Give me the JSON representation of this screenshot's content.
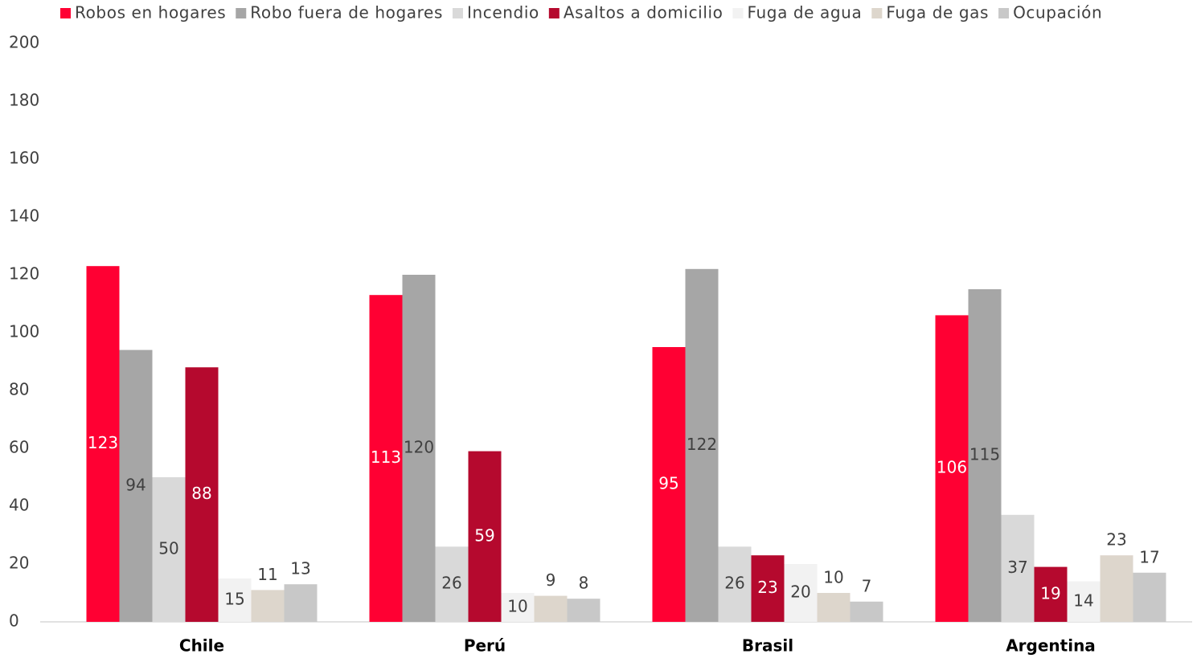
{
  "chart_data": {
    "type": "bar",
    "categories": [
      "Chile",
      "Perú",
      "Brasil",
      "Argentina"
    ],
    "series": [
      {
        "name": "Robos en hogares",
        "color": "#ff0033",
        "values": [
          123,
          113,
          95,
          106
        ],
        "label_position": "center"
      },
      {
        "name": "Robo fuera de hogares",
        "color": "#a6a6a6",
        "values": [
          94,
          120,
          122,
          115
        ],
        "label_position": "center"
      },
      {
        "name": "Incendio",
        "color": "#d9d9d9",
        "values": [
          50,
          26,
          26,
          37
        ],
        "label_position": "center"
      },
      {
        "name": "Asaltos a domicilio",
        "color": "#b5092e",
        "values": [
          88,
          59,
          23,
          19
        ],
        "label_position": "center"
      },
      {
        "name": "Fuga de agua",
        "color": "#f2f2f2",
        "values": [
          15,
          10,
          20,
          14
        ],
        "label_position": "center"
      },
      {
        "name": "Fuga de gas",
        "color": "#ddd6cc",
        "values": [
          11,
          9,
          10,
          23
        ],
        "label_position": "above"
      },
      {
        "name": "Ocupación",
        "color": "#c8c8c8",
        "values": [
          13,
          8,
          7,
          17
        ],
        "label_position": "above"
      }
    ],
    "ylim": [
      0,
      200
    ],
    "yticks": [
      0,
      20,
      40,
      60,
      80,
      100,
      120,
      140,
      160,
      180,
      200
    ],
    "grid": false,
    "legend": "top"
  }
}
